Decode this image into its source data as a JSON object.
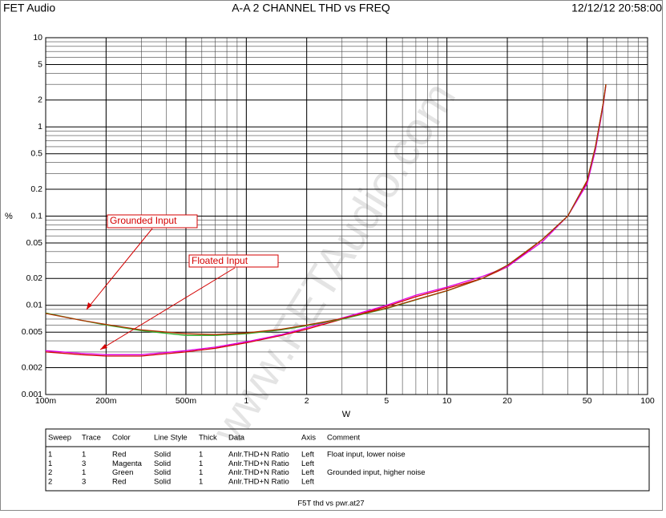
{
  "chart_data": {
    "type": "line",
    "header_left": "FET Audio",
    "title": "A-A 2 CHANNEL  THD vs FREQ",
    "header_right": "12/12/12 20:58:00",
    "xlabel": "W",
    "ylabel": "%",
    "footer": "F5T thd vs pwr.at27",
    "watermark": "www.FETAudio.com",
    "xscale": "log",
    "yscale": "log",
    "grid": true,
    "minor_grid": true,
    "xlim": [
      0.1,
      100
    ],
    "ylim": [
      0.001,
      10
    ],
    "xticks": [
      {
        "value": 0.1,
        "label": "100m"
      },
      {
        "value": 0.2,
        "label": "200m"
      },
      {
        "value": 0.5,
        "label": "500m"
      },
      1,
      2,
      5,
      10,
      20,
      50,
      100
    ],
    "yticks": [
      0.001,
      0.002,
      0.005,
      0.01,
      0.02,
      0.05,
      0.1,
      0.2,
      0.5,
      1,
      2,
      5,
      10
    ],
    "x": [
      0.1,
      0.15,
      0.2,
      0.3,
      0.5,
      0.7,
      1,
      1.5,
      2,
      3,
      5,
      7,
      10,
      15,
      20,
      30,
      40,
      50,
      55,
      60,
      62
    ],
    "series": [
      {
        "color": "#d40000",
        "values": [
          0.003,
          0.0028,
          0.0027,
          0.0027,
          0.003,
          0.0033,
          0.0038,
          0.0046,
          0.0054,
          0.007,
          0.0097,
          0.0125,
          0.0155,
          0.02,
          0.027,
          0.055,
          0.1,
          0.24,
          0.6,
          1.8,
          3
        ]
      },
      {
        "color": "#e000e0",
        "values": [
          0.0031,
          0.0029,
          0.0028,
          0.0028,
          0.0031,
          0.0034,
          0.0039,
          0.0047,
          0.0056,
          0.0072,
          0.01,
          0.013,
          0.016,
          0.021,
          0.027,
          0.052,
          0.1,
          0.23,
          0.55,
          1.7,
          2.9
        ]
      },
      {
        "color": "#30b030",
        "values": [
          0.0082,
          0.0068,
          0.006,
          0.0052,
          0.0046,
          0.0046,
          0.0048,
          0.0053,
          0.0059,
          0.007,
          0.0092,
          0.0115,
          0.0145,
          0.02,
          0.028,
          0.055,
          0.1,
          0.25,
          0.6,
          1.8,
          3
        ]
      },
      {
        "color": "#b03000",
        "values": [
          0.0081,
          0.0068,
          0.0061,
          0.0053,
          0.0048,
          0.0047,
          0.0049,
          0.0054,
          0.006,
          0.0071,
          0.0093,
          0.0116,
          0.0146,
          0.02,
          0.028,
          0.055,
          0.1,
          0.25,
          0.6,
          1.8,
          3
        ]
      }
    ],
    "annotations": [
      {
        "text": "Grounded Input"
      },
      {
        "text": "Floated Input"
      }
    ],
    "table": {
      "columns": [
        "Sweep",
        "Trace",
        "Color",
        "Line Style",
        "Thick",
        "Data",
        "Axis",
        "Comment"
      ],
      "rows": [
        [
          "1",
          "1",
          "Red",
          "Solid",
          "1",
          "Anlr.THD+N Ratio",
          "Left",
          "Float input, lower noise"
        ],
        [
          "1",
          "3",
          "Magenta",
          "Solid",
          "1",
          "Anlr.THD+N Ratio",
          "Left",
          ""
        ],
        [
          "2",
          "1",
          "Green",
          "Solid",
          "1",
          "Anlr.THD+N Ratio",
          "Left",
          "Grounded input, higher noise"
        ],
        [
          "2",
          "3",
          "Red",
          "Solid",
          "1",
          "Anlr.THD+N Ratio",
          "Left",
          ""
        ]
      ]
    }
  }
}
